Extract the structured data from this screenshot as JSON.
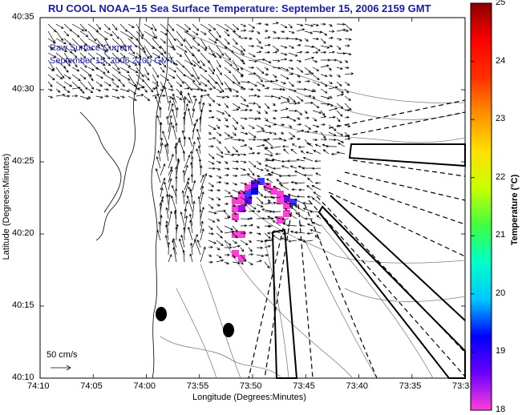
{
  "title": "RU COOL  NOAA−15  Sea Surface Temperature:  September 15, 2006 2159 GMT",
  "overlay": {
    "line1": "Raw Surface Current",
    "line2": "September 15, 2006 2200 GMT"
  },
  "scale_label": "50 cm/s",
  "axes": {
    "xlabel": "Longitude (Degrees:Minutes)",
    "ylabel": "Latitude (Degrees:Minutes)",
    "x_ticks": [
      "74:10",
      "74:05",
      "74:00",
      "73:55",
      "73:50",
      "73:45",
      "73:40",
      "73:35",
      "73:3"
    ],
    "y_ticks": [
      "40:35",
      "40:30",
      "40:25",
      "40:20",
      "40:15",
      "40:10"
    ]
  },
  "colorbar": {
    "title": "Temperature (°C)",
    "ticks": [
      "25",
      "24",
      "23",
      "22",
      "21",
      "20",
      "19",
      "18"
    ],
    "min": 18,
    "max": 25,
    "colors": [
      "#ff3fd8",
      "#6a00ff",
      "#0000ff",
      "#00c8ff",
      "#00ffc8",
      "#40ff40",
      "#c8ff00",
      "#ffe000",
      "#ff9000",
      "#ff3000",
      "#ff0000",
      "#8b0000"
    ]
  }
}
